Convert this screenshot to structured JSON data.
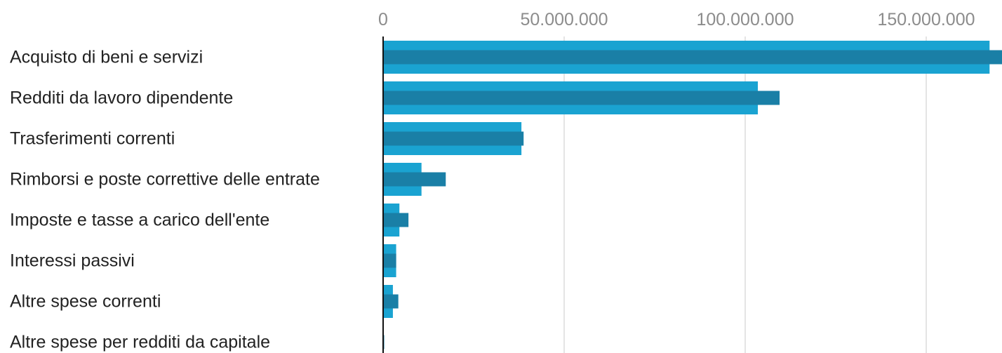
{
  "chart_data": {
    "type": "bar",
    "orientation": "horizontal",
    "title": "",
    "xlabel": "",
    "ylabel": "",
    "xlim": [
      0,
      170000000
    ],
    "x_ticks": [
      0,
      50000000,
      100000000,
      150000000
    ],
    "x_tick_labels": [
      "0",
      "50.000.000",
      "100.000.000",
      "150.000.000"
    ],
    "grid": true,
    "categories": [
      "Acquisto di beni e servizi",
      "Redditi da lavoro dipendente",
      "Trasferimenti correnti",
      "Rimborsi e poste correttive delle entrate",
      "Imposte e tasse a carico dell'ente",
      "Interessi passivi",
      "Altre spese correnti",
      "Altre spese per redditi da capitale"
    ],
    "series": [
      {
        "color": "#1aa3d1",
        "values": [
          167500000,
          103500000,
          38200000,
          10600000,
          4500000,
          3600000,
          2700000,
          150000
        ]
      },
      {
        "color": "#1a7fa6",
        "values": [
          171000000,
          109500000,
          38800000,
          17300000,
          7000000,
          3600000,
          4200000,
          300000
        ]
      }
    ]
  }
}
